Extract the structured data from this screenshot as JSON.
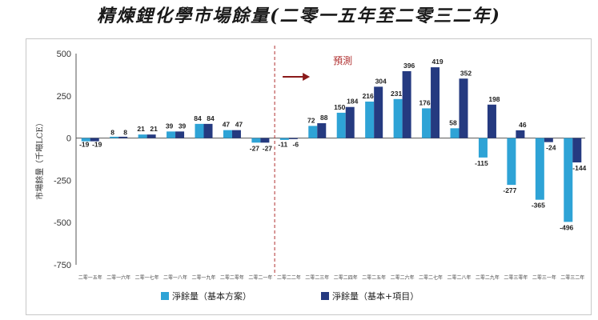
{
  "chart_data": {
    "type": "bar",
    "title": "精煉鋰化學市場餘量(二零一五年至二零三二年)",
    "ylabel": "市場餘量（千噸LCE）",
    "ylim": [
      -750,
      500
    ],
    "yticks": [
      500,
      250,
      0,
      -250,
      -500,
      -750
    ],
    "categories": [
      "二零一五年",
      "二零一六年",
      "二零一七年",
      "二零一八年",
      "二零一九年",
      "二零二零年",
      "二零二一年",
      "二零二二年",
      "二零二三年",
      "二零二四年",
      "二零二五年",
      "二零二六年",
      "二零二七年",
      "二零二八年",
      "二零二九年",
      "二零三零年",
      "二零三一年",
      "二零三二年"
    ],
    "series": [
      {
        "name": "淨餘量（基本方案）",
        "color": "#2ea3d6",
        "values": [
          -19,
          8,
          21,
          39,
          84,
          47,
          -27,
          -11,
          72,
          150,
          216,
          231,
          176,
          58,
          -115,
          -277,
          -365,
          -496
        ]
      },
      {
        "name": "淨餘量（基本+項目）",
        "color": "#253a80",
        "values": [
          -19,
          8,
          21,
          39,
          84,
          47,
          -27,
          -6,
          88,
          184,
          304,
          396,
          419,
          352,
          198,
          46,
          -24,
          -144
        ]
      }
    ],
    "annotation": "預測",
    "forecast_start_category": "二零二二年",
    "grid": false,
    "legend": "bottom"
  }
}
